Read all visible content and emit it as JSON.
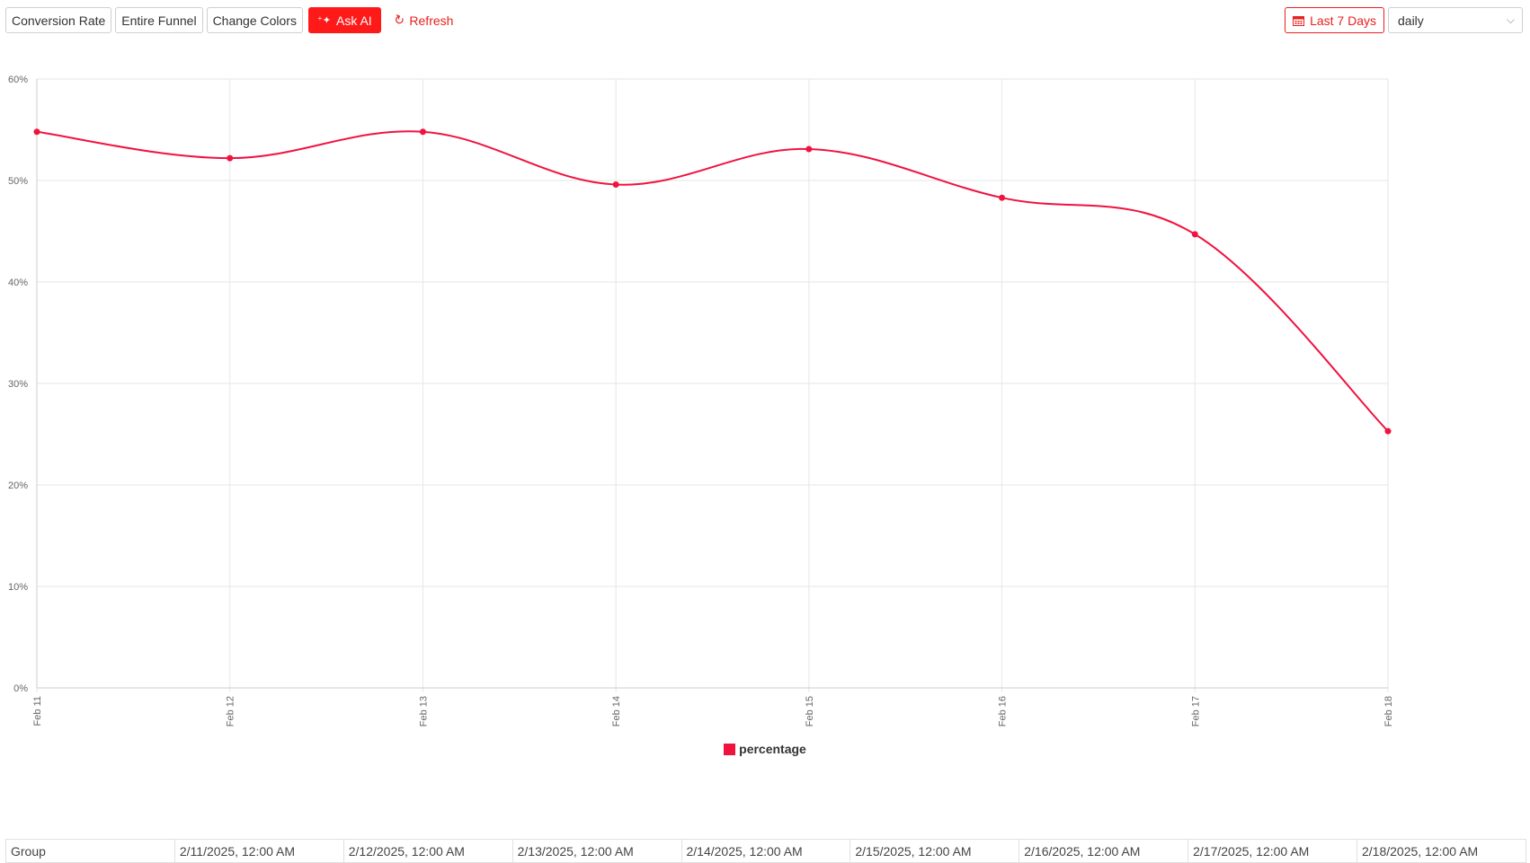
{
  "toolbar": {
    "conversion_rate_label": "Conversion Rate",
    "entire_funnel_label": "Entire Funnel",
    "change_colors_label": "Change Colors",
    "ask_ai_label": "Ask AI",
    "refresh_label": "Refresh",
    "date_range_label": "Last 7 Days",
    "granularity_value": "daily"
  },
  "colors": {
    "accent": "#ff1a1a",
    "series": "#f0133f"
  },
  "chart_data": {
    "type": "line",
    "categories": [
      "Feb 11",
      "Feb 12",
      "Feb 13",
      "Feb 14",
      "Feb 15",
      "Feb 16",
      "Feb 17",
      "Feb 18"
    ],
    "series": [
      {
        "name": "percentage",
        "values": [
          54.8,
          52.2,
          54.8,
          49.6,
          53.1,
          48.3,
          44.7,
          25.3
        ]
      }
    ],
    "yticks": [
      "0%",
      "10%",
      "20%",
      "30%",
      "40%",
      "50%",
      "60%"
    ],
    "ylim": [
      0,
      60
    ],
    "grid": true,
    "legend_position": "bottom"
  },
  "table": {
    "header_label": "Group",
    "columns": [
      "2/11/2025, 12:00 AM",
      "2/12/2025, 12:00 AM",
      "2/13/2025, 12:00 AM",
      "2/14/2025, 12:00 AM",
      "2/15/2025, 12:00 AM",
      "2/16/2025, 12:00 AM",
      "2/17/2025, 12:00 AM",
      "2/18/2025, 12:00 AM"
    ]
  }
}
